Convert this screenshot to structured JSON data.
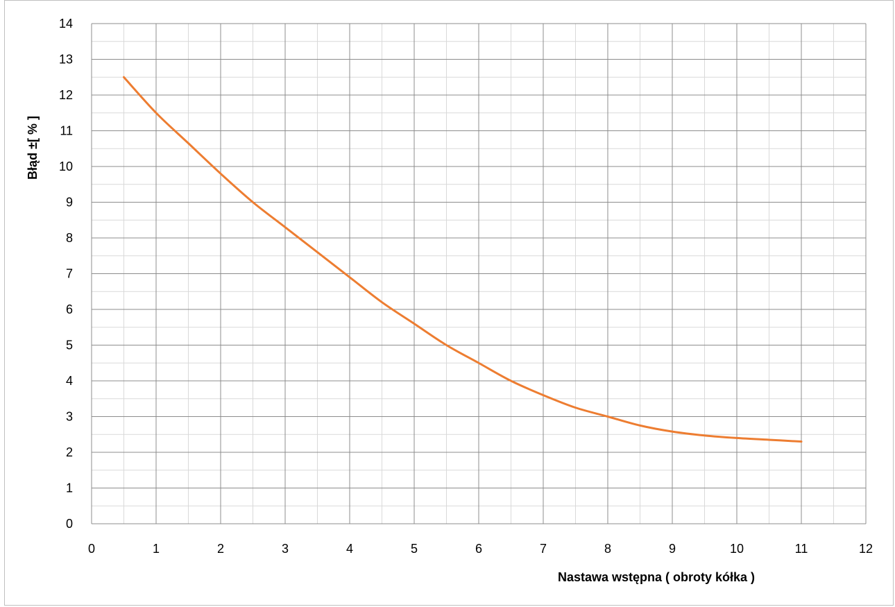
{
  "chart_data": {
    "type": "line",
    "xlabel": "Nastawa wstępna ( obroty kółka )",
    "ylabel": "Błąd ±[ % ]",
    "xlim": [
      0,
      12
    ],
    "ylim": [
      0,
      14
    ],
    "x_major_step": 1,
    "x_minor_step": 0.5,
    "y_major_step": 1,
    "y_minor_step": 0.5,
    "x_tick_labels": [
      "0",
      "1",
      "2",
      "3",
      "4",
      "5",
      "6",
      "7",
      "8",
      "9",
      "10",
      "11",
      "12"
    ],
    "y_tick_labels": [
      "0",
      "1",
      "2",
      "3",
      "4",
      "5",
      "6",
      "7",
      "8",
      "9",
      "10",
      "11",
      "12",
      "13",
      "14"
    ],
    "grid": true,
    "legend": "none",
    "series": [
      {
        "color": "#ed7d31",
        "x": [
          0.5,
          1,
          1.5,
          2,
          2.5,
          3,
          3.5,
          4,
          4.5,
          5,
          5.5,
          6,
          6.5,
          7,
          7.5,
          8,
          8.5,
          9,
          9.5,
          10,
          10.5,
          11
        ],
        "y": [
          12.5,
          11.5,
          10.65,
          9.8,
          9.0,
          8.3,
          7.6,
          6.9,
          6.2,
          5.6,
          5.0,
          4.5,
          4.0,
          3.6,
          3.25,
          3.0,
          2.75,
          2.58,
          2.47,
          2.4,
          2.35,
          2.3
        ]
      }
    ]
  }
}
